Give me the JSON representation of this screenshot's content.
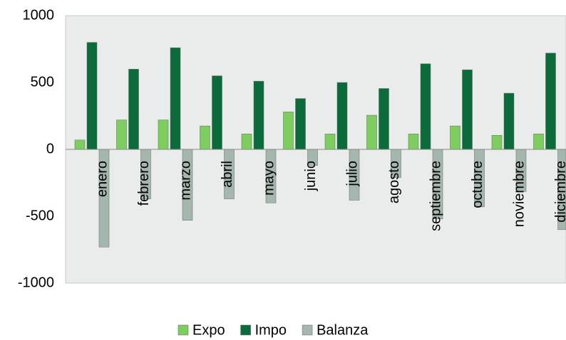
{
  "chart_data": {
    "type": "bar",
    "categories": [
      "enero",
      "febrero",
      "marzo",
      "abril",
      "mayo",
      "junio",
      "julio",
      "agosto",
      "septiembre",
      "octubre",
      "noviembre",
      "diciembre"
    ],
    "series": [
      {
        "name": "Expo",
        "color": "#7dcd5f",
        "values": [
          70,
          220,
          220,
          175,
          115,
          280,
          115,
          255,
          115,
          175,
          105,
          115
        ]
      },
      {
        "name": "Impo",
        "color": "#0c6b3b",
        "values": [
          800,
          600,
          760,
          550,
          510,
          380,
          500,
          455,
          640,
          595,
          420,
          720
        ]
      },
      {
        "name": "Balanza",
        "color": "#a4b6ad",
        "values": [
          -730,
          -370,
          -530,
          -370,
          -400,
          -120,
          -380,
          -210,
          -520,
          -430,
          -315,
          -600
        ]
      }
    ],
    "ylim": [
      -1000,
      1000
    ],
    "yticks": [
      -1000,
      -500,
      0,
      500,
      1000
    ]
  }
}
